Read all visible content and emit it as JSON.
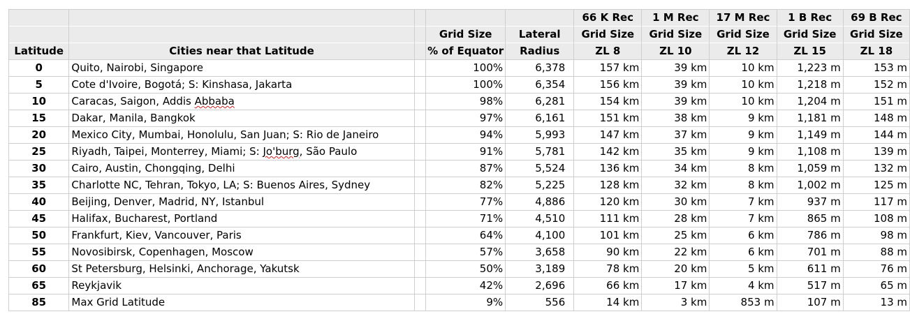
{
  "header": {
    "row1": [
      "",
      "",
      "",
      "",
      "",
      "66 K Rec",
      "1 M Rec",
      "17 M Rec",
      "1 B Rec",
      "69 B Rec"
    ],
    "row2": [
      "",
      "",
      "",
      "Grid Size",
      "Lateral",
      "Grid Size",
      "Grid Size",
      "Grid Size",
      "Grid Size",
      "Grid Size"
    ],
    "row3": [
      "Latitude",
      "Cities near that Latitude",
      "",
      "% of Equator",
      "Radius",
      "ZL  8",
      "ZL 10",
      "ZL 12",
      "ZL 15",
      "ZL 18"
    ]
  },
  "rows": [
    {
      "lat": "0",
      "cities": "Quito, Nairobi, Singapore",
      "pct": "100%",
      "radius": "6,378",
      "zl8": "157 km",
      "zl10": "39 km",
      "zl12": "10 km",
      "zl15": "1,223  m",
      "zl18": "153  m"
    },
    {
      "lat": "5",
      "cities": "Cote d'Ivoire, Bogotá; S: Kinshasa, Jakarta",
      "pct": "100%",
      "radius": "6,354",
      "zl8": "156 km",
      "zl10": "39 km",
      "zl12": "10 km",
      "zl15": "1,218  m",
      "zl18": "152  m"
    },
    {
      "lat": "10",
      "cities": "Caracas, Saigon, Addis Abbaba",
      "pct": "98%",
      "radius": "6,281",
      "zl8": "154 km",
      "zl10": "39 km",
      "zl12": "10 km",
      "zl15": "1,204  m",
      "zl18": "151  m"
    },
    {
      "lat": "15",
      "cities": "Dakar, Manila, Bangkok",
      "pct": "97%",
      "radius": "6,161",
      "zl8": "151 km",
      "zl10": "38 km",
      "zl12": "9 km",
      "zl15": "1,181  m",
      "zl18": "148  m"
    },
    {
      "lat": "20",
      "cities": "Mexico City, Mumbai, Honolulu, San Juan; S: Rio de Janeiro",
      "pct": "94%",
      "radius": "5,993",
      "zl8": "147 km",
      "zl10": "37 km",
      "zl12": "9 km",
      "zl15": "1,149  m",
      "zl18": "144  m"
    },
    {
      "lat": "25",
      "cities": "Riyadh, Taipei, Monterrey, Miami; S: Jo'burg, São Paulo",
      "pct": "91%",
      "radius": "5,781",
      "zl8": "142 km",
      "zl10": "35 km",
      "zl12": "9 km",
      "zl15": "1,108  m",
      "zl18": "139  m"
    },
    {
      "lat": "30",
      "cities": "Cairo, Austin, Chongqing, Delhi",
      "pct": "87%",
      "radius": "5,524",
      "zl8": "136 km",
      "zl10": "34 km",
      "zl12": "8 km",
      "zl15": "1,059  m",
      "zl18": "132  m"
    },
    {
      "lat": "35",
      "cities": "Charlotte NC, Tehran, Tokyo, LA; S: Buenos Aires, Sydney",
      "pct": "82%",
      "radius": "5,225",
      "zl8": "128 km",
      "zl10": "32 km",
      "zl12": "8 km",
      "zl15": "1,002  m",
      "zl18": "125  m"
    },
    {
      "lat": "40",
      "cities": "Beijing, Denver, Madrid, NY, Istanbul",
      "pct": "77%",
      "radius": "4,886",
      "zl8": "120 km",
      "zl10": "30 km",
      "zl12": "7 km",
      "zl15": "937  m",
      "zl18": "117  m"
    },
    {
      "lat": "45",
      "cities": "Halifax, Bucharest, Portland",
      "pct": "71%",
      "radius": "4,510",
      "zl8": "111 km",
      "zl10": "28 km",
      "zl12": "7 km",
      "zl15": "865  m",
      "zl18": "108  m"
    },
    {
      "lat": "50",
      "cities": "Frankfurt, Kiev, Vancouver, Paris",
      "pct": "64%",
      "radius": "4,100",
      "zl8": "101 km",
      "zl10": "25 km",
      "zl12": "6 km",
      "zl15": "786  m",
      "zl18": "98  m"
    },
    {
      "lat": "55",
      "cities": "Novosibirsk, Copenhagen, Moscow",
      "pct": "57%",
      "radius": "3,658",
      "zl8": "90 km",
      "zl10": "22 km",
      "zl12": "6 km",
      "zl15": "701  m",
      "zl18": "88  m"
    },
    {
      "lat": "60",
      "cities": "St Petersburg, Helsinki, Anchorage, Yakutsk",
      "pct": "50%",
      "radius": "3,189",
      "zl8": "78 km",
      "zl10": "20 km",
      "zl12": "5 km",
      "zl15": "611  m",
      "zl18": "76  m"
    },
    {
      "lat": "65",
      "cities": "Reykjavik",
      "pct": "42%",
      "radius": "2,696",
      "zl8": "66 km",
      "zl10": "17 km",
      "zl12": "4 km",
      "zl15": "517  m",
      "zl18": "65  m"
    },
    {
      "lat": "85",
      "cities": "Max Grid Latitude",
      "pct": "9%",
      "radius": "556",
      "zl8": "14 km",
      "zl10": "3 km",
      "zl12": "853  m",
      "zl15": "107  m",
      "zl18": "13  m"
    }
  ]
}
